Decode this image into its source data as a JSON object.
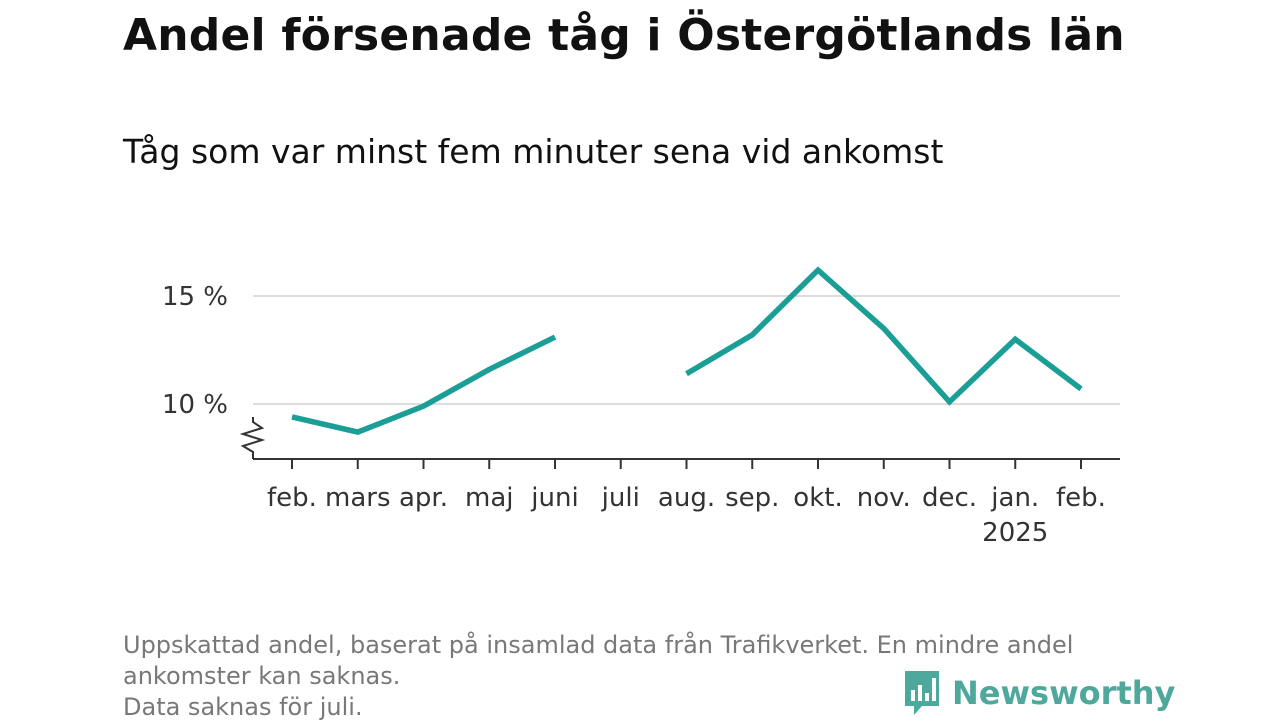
{
  "header": {
    "title": "Andel försenade tåg i Östergötlands län",
    "subtitle": "Tåg som var minst fem minuter sena vid ankomst"
  },
  "footer": {
    "note_lines": [
      "Uppskattad andel, baserat på insamlad data från Trafikverket. En mindre andel",
      "ankomster kan saknas.",
      "Data saknas för juli."
    ],
    "brand": "Newsworthy"
  },
  "colors": {
    "line": "#1a9e96",
    "grid": "#dddddd",
    "axis": "#333333",
    "brand": "#4ea89b"
  },
  "icons": {
    "logo": "bar-chart-speech-bubble-icon",
    "axis_break": "zigzag-axis-break-icon"
  },
  "chart_data": {
    "type": "line",
    "title": "Andel försenade tåg i Östergötlands län",
    "subtitle": "Tåg som var minst fem minuter sena vid ankomst",
    "categories": [
      "feb.",
      "mars",
      "apr.",
      "maj",
      "juni",
      "juli",
      "aug.",
      "sep.",
      "okt.",
      "nov.",
      "dec.",
      "jan.",
      "feb."
    ],
    "category_sublabels": [
      "",
      "",
      "",
      "",
      "",
      "",
      "",
      "",
      "",
      "",
      "",
      "2025",
      ""
    ],
    "series": [
      {
        "values": [
          9.4,
          8.7,
          9.9,
          11.6,
          13.1,
          null,
          11.4,
          13.2,
          16.2,
          13.5,
          10.1,
          13.0,
          10.7
        ]
      }
    ],
    "y_ticks": [
      10,
      15
    ],
    "y_tick_labels": [
      "10 %",
      "15 %"
    ],
    "ylim": [
      7.4,
      16.5
    ],
    "y_axis_break": true,
    "grid": true,
    "xlabel": "",
    "ylabel": ""
  }
}
